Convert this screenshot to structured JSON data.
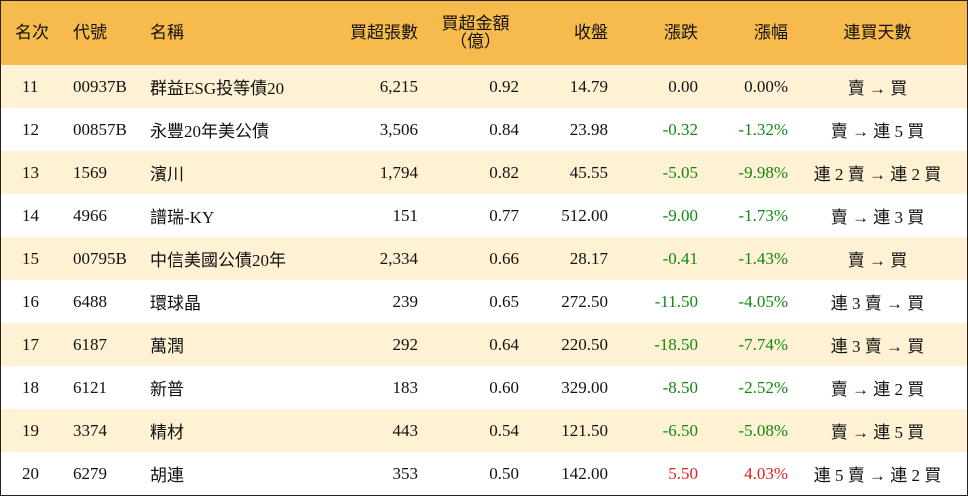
{
  "headers": {
    "rank": "名次",
    "code": "代號",
    "name": "名稱",
    "net_buy_shares": "買超張數",
    "net_buy_amount_line1": "買超金額",
    "net_buy_amount_line2": "（億）",
    "close": "收盤",
    "change": "漲跌",
    "change_pct": "漲幅",
    "consecutive_days": "連買天數"
  },
  "colors": {
    "header_bg": "#f6bb4c",
    "stripe_bg": "#fff1d4",
    "up": "#e02020",
    "down": "#118811"
  },
  "rows": [
    {
      "rank": "11",
      "code": "00937B",
      "name": "群益ESG投等債20",
      "shares": "6,215",
      "amount": "0.92",
      "close": "14.79",
      "change": "0.00",
      "pct": "0.00%",
      "days": "賣 → 買",
      "dir": "zero"
    },
    {
      "rank": "12",
      "code": "00857B",
      "name": "永豐20年美公債",
      "shares": "3,506",
      "amount": "0.84",
      "close": "23.98",
      "change": "-0.32",
      "pct": "-1.32%",
      "days": "賣 → 連 5 買",
      "dir": "neg"
    },
    {
      "rank": "13",
      "code": "1569",
      "name": "濱川",
      "shares": "1,794",
      "amount": "0.82",
      "close": "45.55",
      "change": "-5.05",
      "pct": "-9.98%",
      "days": "連 2 賣 → 連 2 買",
      "dir": "neg"
    },
    {
      "rank": "14",
      "code": "4966",
      "name": "譜瑞-KY",
      "shares": "151",
      "amount": "0.77",
      "close": "512.00",
      "change": "-9.00",
      "pct": "-1.73%",
      "days": "賣 → 連 3 買",
      "dir": "neg"
    },
    {
      "rank": "15",
      "code": "00795B",
      "name": "中信美國公債20年",
      "shares": "2,334",
      "amount": "0.66",
      "close": "28.17",
      "change": "-0.41",
      "pct": "-1.43%",
      "days": "賣 → 買",
      "dir": "neg"
    },
    {
      "rank": "16",
      "code": "6488",
      "name": "環球晶",
      "shares": "239",
      "amount": "0.65",
      "close": "272.50",
      "change": "-11.50",
      "pct": "-4.05%",
      "days": "連 3 賣 → 買",
      "dir": "neg"
    },
    {
      "rank": "17",
      "code": "6187",
      "name": "萬潤",
      "shares": "292",
      "amount": "0.64",
      "close": "220.50",
      "change": "-18.50",
      "pct": "-7.74%",
      "days": "連 3 賣 → 買",
      "dir": "neg"
    },
    {
      "rank": "18",
      "code": "6121",
      "name": "新普",
      "shares": "183",
      "amount": "0.60",
      "close": "329.00",
      "change": "-8.50",
      "pct": "-2.52%",
      "days": "賣 → 連 2 買",
      "dir": "neg"
    },
    {
      "rank": "19",
      "code": "3374",
      "name": "精材",
      "shares": "443",
      "amount": "0.54",
      "close": "121.50",
      "change": "-6.50",
      "pct": "-5.08%",
      "days": "賣 → 連 5 買",
      "dir": "neg"
    },
    {
      "rank": "20",
      "code": "6279",
      "name": "胡連",
      "shares": "353",
      "amount": "0.50",
      "close": "142.00",
      "change": "5.50",
      "pct": "4.03%",
      "days": "連 5 賣 → 連 2 買",
      "dir": "pos"
    }
  ]
}
